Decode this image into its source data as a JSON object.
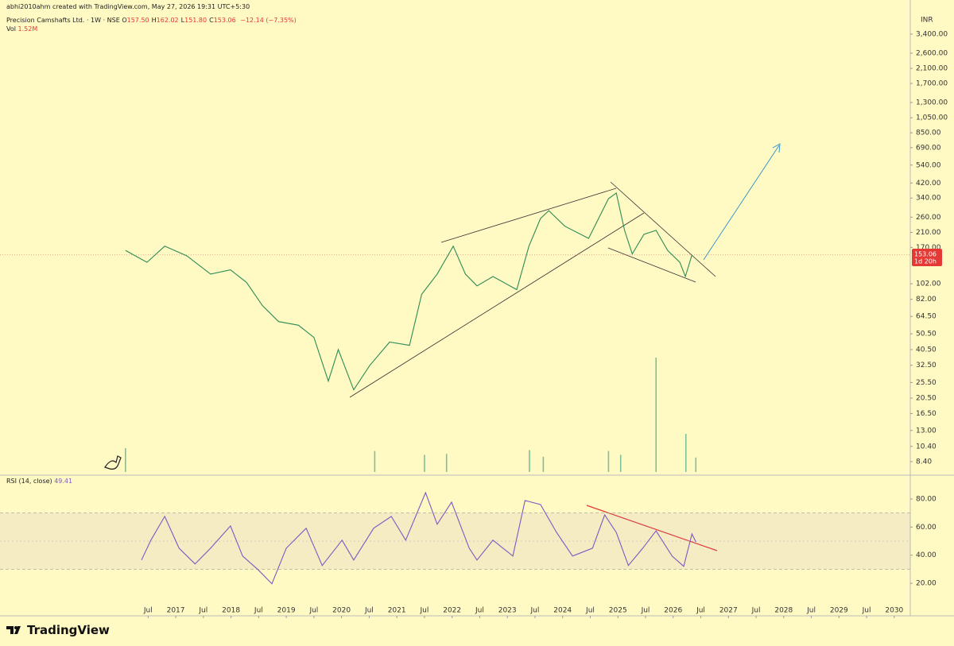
{
  "header": {
    "credit": "abhi2010ahm created with TradingView.com, May 27, 2026 19:31 UTC+5:30",
    "symbol": "Precision Camshafts Ltd. · 1W · NSE",
    "ohlc": [
      {
        "label": "O",
        "value": "157.50"
      },
      {
        "label": "H",
        "value": "162.02"
      },
      {
        "label": "L",
        "value": "151.80"
      },
      {
        "label": "C",
        "value": "153.06"
      }
    ],
    "change": "−12.14 (−7.35%)",
    "currency": "INR",
    "price_tag": {
      "price": "153.06",
      "countdown": "1d 20h"
    },
    "brand": "TradingView"
  },
  "chart_data": [
    {
      "type": "line",
      "log_scale": true,
      "color": "#2e8b57",
      "x": [
        2016.09,
        2016.48,
        2016.8,
        2017.2,
        2017.63,
        2017.99,
        2018.28,
        2018.57,
        2018.86,
        2019.22,
        2019.5,
        2019.76,
        2019.94,
        2020.22,
        2020.51,
        2020.87,
        2021.23,
        2021.45,
        2021.73,
        2022.02,
        2022.24,
        2022.45,
        2022.74,
        2023.17,
        2023.39,
        2023.6,
        2023.75,
        2024.04,
        2024.47,
        2024.83,
        2024.97,
        2025.12,
        2025.26,
        2025.47,
        2025.69,
        2025.9,
        2026.12,
        2026.22,
        2026.34
      ],
      "values": [
        163,
        138,
        173,
        151,
        117,
        124,
        104,
        75,
        60,
        57,
        48,
        26,
        40.5,
        23,
        32.4,
        45,
        43,
        88,
        117,
        173,
        117,
        99,
        113,
        94,
        173,
        255,
        285,
        229,
        193,
        337,
        365,
        216,
        155,
        204,
        216,
        163,
        138,
        113,
        153.06
      ],
      "xlim": [
        2013.82,
        2030.29
      ],
      "ylim": [
        7.02,
        5486
      ],
      "yticks": [
        {
          "value": 3400,
          "label": "3,400.00"
        },
        {
          "value": 2600,
          "label": "2,600.00"
        },
        {
          "value": 2100,
          "label": "2,100.00"
        },
        {
          "value": 1700,
          "label": "1,700.00"
        },
        {
          "value": 1300,
          "label": "1,300.00"
        },
        {
          "value": 1050,
          "label": "1,050.00"
        },
        {
          "value": 850,
          "label": "850.00"
        },
        {
          "value": 690,
          "label": "690.00"
        },
        {
          "value": 540,
          "label": "540.00"
        },
        {
          "value": 420,
          "label": "420.00"
        },
        {
          "value": 340,
          "label": "340.00"
        },
        {
          "value": 260,
          "label": "260.00"
        },
        {
          "value": 210,
          "label": "210.00"
        },
        {
          "value": 170,
          "label": "170.00"
        },
        {
          "value": 102,
          "label": "102.00"
        },
        {
          "value": 82,
          "label": "82.00"
        },
        {
          "value": 64.5,
          "label": "64.50"
        },
        {
          "value": 50.5,
          "label": "50.50"
        },
        {
          "value": 40.5,
          "label": "40.50"
        },
        {
          "value": 32.5,
          "label": "32.50"
        },
        {
          "value": 25.5,
          "label": "25.50"
        },
        {
          "value": 20.5,
          "label": "20.50"
        },
        {
          "value": 16.5,
          "label": "16.50"
        },
        {
          "value": 13,
          "label": "13.00"
        },
        {
          "value": 10.4,
          "label": "10.40"
        },
        {
          "value": 8.4,
          "label": "8.40"
        }
      ],
      "volume": {
        "name": "Vol",
        "color": "#7fbf9a",
        "x": [
          2016.09,
          2020.6,
          2021.5,
          2021.9,
          2023.4,
          2023.65,
          2024.83,
          2025.05,
          2025.69,
          2026.23,
          2026.41
        ],
        "values": [
          2500000,
          2200000,
          1800000,
          1900000,
          2300000,
          1600000,
          2200000,
          1800000,
          12000000,
          4000000,
          1520000
        ],
        "value_labels": [
          null,
          null,
          null,
          null,
          null,
          null,
          null,
          null,
          null,
          null,
          "1.52M"
        ]
      }
    },
    {
      "type": "line",
      "title": "RSI (14, close)",
      "color": "#7e57c2",
      "bands": [
        30,
        70
      ],
      "midline": 50,
      "x": [
        2016.38,
        2016.55,
        2016.8,
        2017.06,
        2017.35,
        2017.63,
        2017.99,
        2018.21,
        2018.5,
        2018.74,
        2019.0,
        2019.36,
        2019.65,
        2020.01,
        2020.22,
        2020.58,
        2020.9,
        2021.16,
        2021.52,
        2021.73,
        2021.99,
        2022.31,
        2022.45,
        2022.74,
        2023.1,
        2023.32,
        2023.6,
        2023.89,
        2024.18,
        2024.54,
        2024.76,
        2024.97,
        2025.19,
        2025.45,
        2025.69,
        2025.98,
        2026.19,
        2026.34,
        2026.41
      ],
      "values": [
        36.6,
        50.7,
        67.6,
        45,
        33.8,
        45,
        60.8,
        39.4,
        29.3,
        19.7,
        45,
        59.2,
        32.7,
        50.7,
        36.6,
        59.2,
        67.6,
        50.7,
        84.5,
        62,
        77.7,
        45,
        36.6,
        50.7,
        39.4,
        78.9,
        76,
        56.2,
        39.4,
        45,
        68.7,
        56.2,
        32.7,
        45,
        57.3,
        39.4,
        32.1,
        55.1,
        49.41
      ],
      "last_label": "49.41",
      "xlim": [
        2013.82,
        2030.29
      ],
      "ylim": [
        -3.1,
        95.8
      ],
      "yticks": [
        {
          "value": 80,
          "label": "80.00"
        },
        {
          "value": 60,
          "label": "60.00"
        },
        {
          "value": 40,
          "label": "40.00"
        },
        {
          "value": 20,
          "label": "20.00"
        }
      ],
      "xticks": [
        {
          "value": 2016.5,
          "label": "Jul"
        },
        2017,
        {
          "value": 2017.5,
          "label": "Jul"
        },
        2018,
        {
          "value": 2018.5,
          "label": "Jul"
        },
        2019,
        {
          "value": 2019.5,
          "label": "Jul"
        },
        2020,
        {
          "value": 2020.5,
          "label": "Jul"
        },
        2021,
        {
          "value": 2021.5,
          "label": "Jul"
        },
        2022,
        {
          "value": 2022.5,
          "label": "Jul"
        },
        2023,
        {
          "value": 2023.5,
          "label": "Jul"
        },
        2024,
        {
          "value": 2024.5,
          "label": "Jul"
        },
        2025,
        {
          "value": 2025.5,
          "label": "Jul"
        },
        2026,
        {
          "value": 2026.5,
          "label": "Jul"
        },
        2027,
        {
          "value": 2027.5,
          "label": "Jul"
        },
        2028,
        {
          "value": 2028.5,
          "label": "Jul"
        },
        2029,
        {
          "value": 2029.5,
          "label": "Jul"
        },
        2030
      ]
    }
  ]
}
